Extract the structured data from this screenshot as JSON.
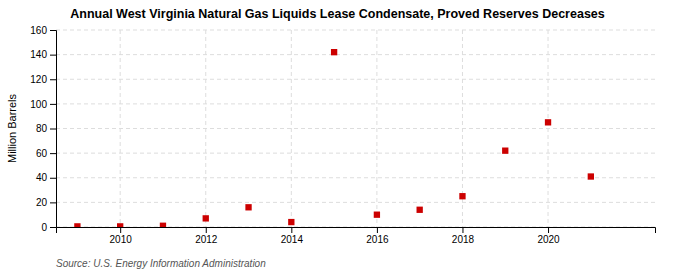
{
  "chart_data": {
    "type": "scatter",
    "title": "Annual West Virginia Natural Gas Liquids Lease Condensate, Proved Reserves Decreases",
    "ylabel": "Million Barrels",
    "source": "Source: U.S. Energy Information Administration",
    "x": [
      2009,
      2010,
      2011,
      2012,
      2013,
      2014,
      2015,
      2016,
      2017,
      2018,
      2019,
      2020,
      2021
    ],
    "values": [
      0.5,
      0.5,
      1.0,
      7.0,
      16.0,
      4.0,
      142.0,
      10.0,
      14.0,
      25.0,
      62.0,
      85.0,
      41.0
    ],
    "color": "#cc0000",
    "marker": "square",
    "xlim": [
      2008.5,
      2022.5
    ],
    "xticks": [
      2010,
      2012,
      2014,
      2016,
      2018,
      2020
    ],
    "ylim": [
      0,
      160
    ],
    "yticks": [
      0,
      20,
      40,
      60,
      80,
      100,
      120,
      140,
      160
    ],
    "grid": true
  }
}
